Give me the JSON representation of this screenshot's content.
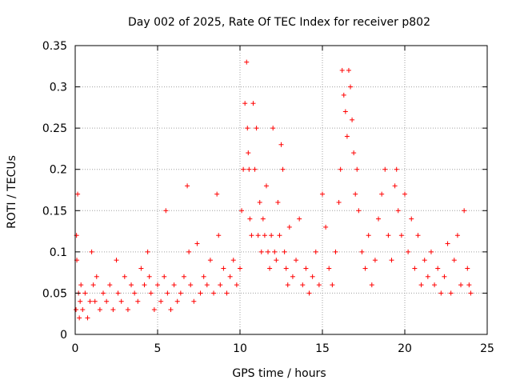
{
  "chart_data": {
    "type": "scatter",
    "title": "Day 002 of 2025, Rate Of TEC Index for receiver p802",
    "xlabel": "GPS time / hours",
    "ylabel": "ROTI / TECUs",
    "xlim": [
      0,
      25
    ],
    "ylim": [
      0,
      0.35
    ],
    "xticks": [
      0,
      5,
      10,
      15,
      20,
      25
    ],
    "xtick_labels": [
      "0",
      "5",
      "10",
      "15",
      "20",
      "25"
    ],
    "yticks": [
      0,
      0.05,
      0.1,
      0.15,
      0.2,
      0.25,
      0.3,
      0.35
    ],
    "ytick_labels": [
      "0",
      "0.05",
      "0.1",
      "0.15",
      "0.2",
      "0.25",
      "0.3",
      "0.35"
    ],
    "grid": true,
    "marker": "plus",
    "color": "#ff0000",
    "series": [
      {
        "x": [
          0.05,
          0.08,
          0.1,
          0.15,
          0.2,
          0.25,
          0.3,
          0.35,
          0.45,
          0.6,
          0.75,
          0.9,
          1.0,
          1.1,
          1.2,
          1.3,
          1.5,
          1.7,
          1.9,
          2.1,
          2.3,
          2.5,
          2.6,
          2.8,
          3.0,
          3.2,
          3.4,
          3.6,
          3.8,
          4.0,
          4.2,
          4.4,
          4.5,
          4.6,
          4.8,
          5.0,
          5.2,
          5.4,
          5.5,
          5.6,
          5.8,
          6.0,
          6.2,
          6.4,
          6.6,
          6.8,
          6.9,
          7.0,
          7.2,
          7.4,
          7.6,
          7.8,
          8.0,
          8.2,
          8.4,
          8.6,
          8.7,
          8.8,
          9.0,
          9.2,
          9.4,
          9.6,
          9.8,
          10.0,
          10.1,
          10.2,
          10.3,
          10.4,
          10.45,
          10.5,
          10.55,
          10.6,
          10.7,
          10.8,
          10.9,
          11.0,
          11.1,
          11.2,
          11.3,
          11.4,
          11.5,
          11.6,
          11.7,
          11.8,
          11.9,
          12.0,
          12.1,
          12.2,
          12.3,
          12.4,
          12.5,
          12.6,
          12.7,
          12.8,
          12.9,
          13.0,
          13.2,
          13.4,
          13.6,
          13.8,
          14.0,
          14.2,
          14.4,
          14.6,
          14.8,
          15.0,
          15.2,
          15.4,
          15.6,
          15.8,
          16.0,
          16.1,
          16.2,
          16.3,
          16.4,
          16.5,
          16.6,
          16.7,
          16.8,
          16.9,
          17.0,
          17.1,
          17.2,
          17.4,
          17.6,
          17.8,
          18.0,
          18.2,
          18.4,
          18.6,
          18.8,
          19.0,
          19.2,
          19.4,
          19.5,
          19.6,
          19.8,
          20.0,
          20.2,
          20.4,
          20.6,
          20.8,
          21.0,
          21.2,
          21.4,
          21.6,
          21.8,
          22.0,
          22.2,
          22.4,
          22.6,
          22.8,
          23.0,
          23.2,
          23.4,
          23.6,
          23.8,
          23.9,
          24.0
        ],
        "y": [
          0.03,
          0.12,
          0.09,
          0.17,
          0.05,
          0.02,
          0.04,
          0.06,
          0.03,
          0.05,
          0.02,
          0.04,
          0.1,
          0.06,
          0.04,
          0.07,
          0.03,
          0.05,
          0.04,
          0.06,
          0.03,
          0.09,
          0.05,
          0.04,
          0.07,
          0.03,
          0.06,
          0.05,
          0.04,
          0.08,
          0.06,
          0.1,
          0.07,
          0.05,
          0.03,
          0.06,
          0.04,
          0.07,
          0.15,
          0.05,
          0.03,
          0.06,
          0.04,
          0.05,
          0.07,
          0.18,
          0.1,
          0.06,
          0.04,
          0.11,
          0.05,
          0.07,
          0.06,
          0.09,
          0.05,
          0.17,
          0.12,
          0.06,
          0.08,
          0.05,
          0.07,
          0.09,
          0.06,
          0.08,
          0.15,
          0.2,
          0.28,
          0.33,
          0.25,
          0.22,
          0.2,
          0.14,
          0.12,
          0.28,
          0.2,
          0.25,
          0.12,
          0.16,
          0.1,
          0.14,
          0.12,
          0.18,
          0.1,
          0.08,
          0.12,
          0.25,
          0.1,
          0.09,
          0.16,
          0.12,
          0.23,
          0.2,
          0.1,
          0.08,
          0.06,
          0.13,
          0.07,
          0.09,
          0.14,
          0.06,
          0.08,
          0.05,
          0.07,
          0.1,
          0.06,
          0.17,
          0.13,
          0.08,
          0.06,
          0.1,
          0.16,
          0.2,
          0.32,
          0.29,
          0.27,
          0.24,
          0.32,
          0.3,
          0.26,
          0.22,
          0.17,
          0.2,
          0.15,
          0.1,
          0.08,
          0.12,
          0.06,
          0.09,
          0.14,
          0.17,
          0.2,
          0.12,
          0.09,
          0.18,
          0.2,
          0.15,
          0.12,
          0.17,
          0.1,
          0.14,
          0.08,
          0.12,
          0.06,
          0.09,
          0.07,
          0.1,
          0.06,
          0.08,
          0.05,
          0.07,
          0.11,
          0.05,
          0.09,
          0.12,
          0.06,
          0.15,
          0.08,
          0.06,
          0.05
        ]
      }
    ]
  }
}
